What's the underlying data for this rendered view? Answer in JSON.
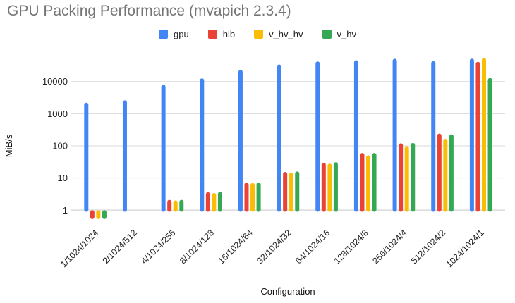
{
  "chart_data": {
    "type": "bar",
    "title": "GPU Packing Performance (mvapich 2.3.4)",
    "xlabel": "Configuration",
    "ylabel": "MiB/s",
    "y_scale": "log",
    "grid": true,
    "legend_position": "top",
    "y_ticks": [
      1,
      10,
      100,
      1000,
      10000
    ],
    "ylim": [
      0.46,
      61000
    ],
    "categories": [
      "1/1024/1024",
      "2/1024/512",
      "4/1024/256",
      "8/1024/128",
      "16/1024/64",
      "32/1024/32",
      "64/1024/16",
      "128/1024/8",
      "256/1024/4",
      "512/1024/2",
      "1024/1024/1"
    ],
    "series": [
      {
        "name": "gpu",
        "color": "#4285F4",
        "values": [
          2200,
          2600,
          8000,
          12500,
          23000,
          34000,
          42000,
          46000,
          51000,
          43000,
          51500
        ]
      },
      {
        "name": "hib",
        "color": "#EA4335",
        "values": [
          0.53,
          null,
          2.1,
          3.6,
          7.2,
          15.5,
          30,
          60,
          120,
          240,
          41000
        ]
      },
      {
        "name": "v_hv_hv",
        "color": "#FBBC04",
        "values": [
          0.53,
          null,
          2.0,
          3.4,
          7.0,
          14.5,
          28,
          51,
          98,
          165,
          54000
        ]
      },
      {
        "name": "v_hv",
        "color": "#34A853",
        "values": [
          0.53,
          null,
          2.1,
          3.7,
          7.3,
          16,
          31,
          60,
          123,
          228,
          12800
        ]
      }
    ]
  }
}
